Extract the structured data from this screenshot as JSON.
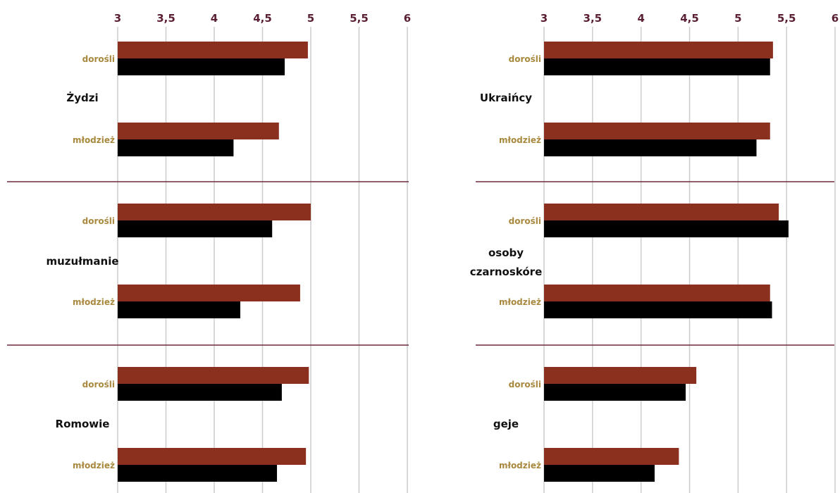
{
  "colors": {
    "series_a": "#8b2f1f",
    "series_b": "#000000",
    "tick_text": "#5a1f34",
    "age_text": "#a8893e",
    "separator": "#6a2a3a",
    "grid": "#cccccc"
  },
  "chart_data": [
    {
      "type": "bar",
      "orientation": "horizontal",
      "xlim": [
        3,
        6
      ],
      "ticks": [
        "3",
        "3,5",
        "4",
        "4,5",
        "5",
        "5,5",
        "6"
      ],
      "tick_values": [
        3,
        3.5,
        4,
        4.5,
        5,
        5.5,
        6
      ],
      "grid": true,
      "groups": [
        {
          "label": [
            "Żydzi"
          ],
          "rows": [
            {
              "label": "dorośli",
              "values": [
                4.97,
                4.73
              ]
            },
            {
              "label": "młodzież",
              "values": [
                4.67,
                4.2
              ]
            }
          ]
        },
        {
          "label": [
            "muzułmanie"
          ],
          "rows": [
            {
              "label": "dorośli",
              "values": [
                5.0,
                4.6
              ]
            },
            {
              "label": "młodzież",
              "values": [
                4.89,
                4.27
              ]
            }
          ]
        },
        {
          "label": [
            "Romowie"
          ],
          "rows": [
            {
              "label": "dorośli",
              "values": [
                4.98,
                4.7
              ]
            },
            {
              "label": "młodzież",
              "values": [
                4.95,
                4.65
              ]
            }
          ]
        }
      ]
    },
    {
      "type": "bar",
      "orientation": "horizontal",
      "xlim": [
        3,
        6
      ],
      "ticks": [
        "3",
        "3,5",
        "4",
        "4,5",
        "5",
        "5,5",
        "6"
      ],
      "tick_values": [
        3,
        3.5,
        4,
        4.5,
        5,
        5.5,
        6
      ],
      "grid": true,
      "groups": [
        {
          "label": [
            "Ukraińcy"
          ],
          "rows": [
            {
              "label": "dorośli",
              "values": [
                5.36,
                5.33
              ]
            },
            {
              "label": "młodzież",
              "values": [
                5.33,
                5.19
              ]
            }
          ]
        },
        {
          "label": [
            "osoby",
            "czarnoskóre"
          ],
          "rows": [
            {
              "label": "dorośli",
              "values": [
                5.42,
                5.52
              ]
            },
            {
              "label": "młodzież",
              "values": [
                5.33,
                5.35
              ]
            }
          ]
        },
        {
          "label": [
            "geje"
          ],
          "rows": [
            {
              "label": "dorośli",
              "values": [
                4.57,
                4.46
              ]
            },
            {
              "label": "młodzież",
              "values": [
                4.39,
                4.14
              ]
            }
          ]
        }
      ]
    }
  ]
}
